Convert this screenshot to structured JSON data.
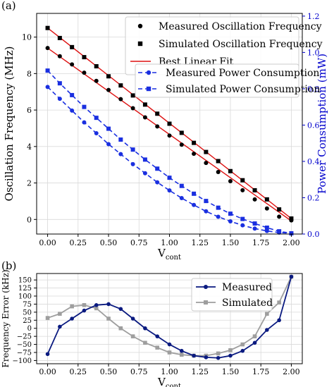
{
  "chart_data": [
    {
      "panel_label": "(a)",
      "type": "line",
      "x": [
        0.0,
        0.1,
        0.2,
        0.3,
        0.4,
        0.5,
        0.6,
        0.7,
        0.8,
        0.9,
        1.0,
        1.1,
        1.2,
        1.3,
        1.4,
        1.5,
        1.6,
        1.7,
        1.8,
        1.9,
        2.0
      ],
      "xlabel_main": "V",
      "xlabel_sub": "cont",
      "ylabel": "Oscillation Frequency (MHz)",
      "ylabel_right": "Power Consumption (mW)",
      "xlim": [
        -0.09,
        2.09
      ],
      "ylim": [
        -0.8,
        11.3
      ],
      "ylim_right": [
        0.0,
        1.215
      ],
      "xticks": [
        "0.00",
        "0.25",
        "0.50",
        "0.75",
        "1.00",
        "1.25",
        "1.50",
        "1.75",
        "2.00"
      ],
      "xtick_values": [
        0,
        0.25,
        0.5,
        0.75,
        1.0,
        1.25,
        1.5,
        1.75,
        2.0
      ],
      "yticks": [
        "0",
        "2",
        "4",
        "6",
        "8",
        "10"
      ],
      "ytick_values": [
        0,
        2,
        4,
        6,
        8,
        10
      ],
      "yticks_right": [
        "0.0",
        "0.2",
        "0.4",
        "0.6",
        "0.8",
        "1.0",
        "1.2"
      ],
      "ytick_values_right": [
        0.0,
        0.2,
        0.4,
        0.6,
        0.8,
        1.0,
        1.2
      ],
      "grid": true,
      "legend_placement": "top-right",
      "right_axis_color": "#0000cc",
      "series": [
        {
          "name": "Measured Oscillation Frequency",
          "axis": "left",
          "marker": "circle",
          "line": "none",
          "color": "#000000",
          "values": [
            9.4,
            8.95,
            8.5,
            8.05,
            7.6,
            7.1,
            6.6,
            6.1,
            5.6,
            5.1,
            4.6,
            4.1,
            3.6,
            3.1,
            2.6,
            2.1,
            1.6,
            1.1,
            0.6,
            0.15,
            -0.05
          ]
        },
        {
          "name": "Simulated Oscillation Frequency",
          "axis": "left",
          "marker": "square",
          "line": "none",
          "color": "#000000",
          "values": [
            10.5,
            9.95,
            9.45,
            8.9,
            8.4,
            7.85,
            7.35,
            6.8,
            6.3,
            5.8,
            5.25,
            4.75,
            4.2,
            3.7,
            3.2,
            2.65,
            2.15,
            1.6,
            1.1,
            0.55,
            0.05
          ]
        },
        {
          "name": "Best Linear Fit",
          "axis": "left",
          "marker": "none",
          "line": "solid",
          "color": "#dd1111",
          "fits": [
            [
              [
                0.0,
                9.4
              ],
              [
                2.0,
                -0.08
              ]
            ],
            [
              [
                0.0,
                10.5
              ],
              [
                2.0,
                0.05
              ]
            ]
          ]
        },
        {
          "name": "Measured Power Consumption",
          "axis": "right",
          "marker": "circle",
          "line": "dashed",
          "color": "#1a2fe0",
          "values": [
            0.81,
            0.745,
            0.68,
            0.615,
            0.555,
            0.495,
            0.44,
            0.385,
            0.335,
            0.285,
            0.24,
            0.198,
            0.16,
            0.125,
            0.095,
            0.07,
            0.048,
            0.03,
            0.017,
            0.008,
            0.004
          ]
        },
        {
          "name": "Simulated Power Consumption",
          "axis": "right",
          "marker": "square",
          "line": "dashed",
          "color": "#1a2fe0",
          "values": [
            0.9,
            0.83,
            0.765,
            0.7,
            0.64,
            0.58,
            0.52,
            0.465,
            0.41,
            0.36,
            0.31,
            0.265,
            0.222,
            0.182,
            0.145,
            0.112,
            0.083,
            0.058,
            0.035,
            0.015,
            0.004
          ]
        }
      ]
    },
    {
      "panel_label": "(b)",
      "type": "line",
      "x": [
        0.0,
        0.1,
        0.2,
        0.3,
        0.4,
        0.5,
        0.6,
        0.7,
        0.8,
        0.9,
        1.0,
        1.1,
        1.2,
        1.3,
        1.4,
        1.5,
        1.6,
        1.7,
        1.8,
        1.9,
        2.0
      ],
      "xlabel_main": "V",
      "xlabel_sub": "cont",
      "ylabel": "Frequency Error (kHz)",
      "xlim": [
        -0.09,
        2.09
      ],
      "ylim": [
        -110,
        170
      ],
      "xticks": [
        "0.00",
        "0.25",
        "0.50",
        "0.75",
        "1.00",
        "1.25",
        "1.50",
        "1.75",
        "2.00"
      ],
      "xtick_values": [
        0,
        0.25,
        0.5,
        0.75,
        1.0,
        1.25,
        1.5,
        1.75,
        2.0
      ],
      "yticks": [
        "−100",
        "−75",
        "−50",
        "−25",
        "0",
        "25",
        "50",
        "75",
        "100",
        "125",
        "150"
      ],
      "ytick_values": [
        -100,
        -75,
        -50,
        -25,
        0,
        25,
        50,
        75,
        100,
        125,
        150
      ],
      "grid": true,
      "legend_placement": "top-right",
      "series": [
        {
          "name": "Measured",
          "marker": "circle",
          "line": "solid",
          "color": "#0a1a80",
          "values": [
            -80,
            5,
            30,
            55,
            72,
            75,
            60,
            30,
            0,
            -25,
            -50,
            -70,
            -85,
            -90,
            -92,
            -85,
            -70,
            -45,
            -5,
            25,
            160
          ]
        },
        {
          "name": "Simulated",
          "marker": "square",
          "line": "solid",
          "color": "#9e9e9e",
          "values": [
            32,
            45,
            68,
            72,
            62,
            30,
            0,
            -25,
            -45,
            -60,
            -75,
            -82,
            -85,
            -85,
            -78,
            -68,
            -50,
            -25,
            45,
            80,
            160
          ]
        }
      ]
    }
  ]
}
